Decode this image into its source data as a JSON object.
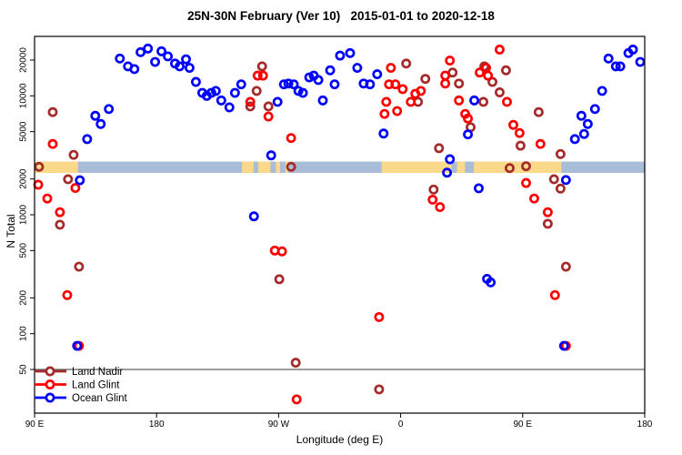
{
  "figure": {
    "title": "25N-30N February (Ver 10)   2015-01-01 to 2020-12-18",
    "xlabel": "Longitude (deg E)",
    "ylabel": "N Total"
  },
  "chart_data": {
    "type": "scatter",
    "title": "25N-30N February (Ver 10)   2015-01-01 to 2020-12-18",
    "xlabel": "Longitude (deg E)",
    "ylabel": "N Total",
    "x_axis": {
      "range_deg_east": [
        90,
        540
      ],
      "ticks": [
        90,
        180,
        270,
        360,
        450,
        540
      ],
      "tick_labels": [
        "90 E",
        "180",
        "90 W",
        "0",
        "90 E",
        "180"
      ]
    },
    "y_axis": {
      "scale": "log10",
      "range": [
        21,
        31000
      ],
      "ticks": [
        50,
        100,
        200,
        500,
        1000,
        2000,
        5000,
        10000,
        20000
      ],
      "tick_labels": [
        "50",
        "100",
        "200",
        "500",
        "1000",
        "2000",
        "5000",
        "10000",
        "20000"
      ]
    },
    "reference_line_y": 50,
    "map_band": {
      "description": "world map strip for 25N-30N drawn across plot",
      "value_range": [
        2250,
        2800
      ],
      "ocean_color": "#a9bcd8",
      "land_color": "#fbd98a",
      "land_segments_deg": [
        [
          90,
          122
        ],
        [
          243,
          251.5
        ],
        [
          255,
          264
        ],
        [
          268,
          271
        ],
        [
          275,
          277
        ],
        [
          346,
          397.5
        ],
        [
          401.5,
          407.5
        ],
        [
          414,
          478.5
        ]
      ]
    },
    "legend": {
      "position": "bottom-left",
      "entries": [
        {
          "label": "Land Nadir",
          "color": "#a52a2a"
        },
        {
          "label": "Land Glint",
          "color": "#ff0000"
        },
        {
          "label": "Ocean Glint",
          "color": "#0000ff"
        }
      ]
    },
    "series": [
      {
        "name": "Land Nadir",
        "color": "#a52a2a",
        "points": [
          [
            103.4,
            7300
          ],
          [
            118.8,
            3190
          ],
          [
            93.3,
            2530
          ],
          [
            114.7,
            1990
          ],
          [
            108.7,
            825
          ],
          [
            122.8,
            366
          ],
          [
            257.8,
            17700
          ],
          [
            253.8,
            11000
          ],
          [
            249.1,
            8150
          ],
          [
            262.5,
            8150
          ],
          [
            279.2,
            2530
          ],
          [
            270.5,
            287
          ],
          [
            282.6,
            57
          ],
          [
            364.1,
            18700
          ],
          [
            378.2,
            13900
          ],
          [
            398.3,
            15700
          ],
          [
            403,
            12700
          ],
          [
            372.8,
            8900
          ],
          [
            421.7,
            17700
          ],
          [
            427.7,
            13100
          ],
          [
            421,
            8900
          ],
          [
            411.6,
            5450
          ],
          [
            388.3,
            3630
          ],
          [
            384.3,
            1630
          ],
          [
            437.7,
            16400
          ],
          [
            433,
            10700
          ],
          [
            448.4,
            3810
          ],
          [
            461.8,
            7300
          ],
          [
            477.9,
            3240
          ],
          [
            440.4,
            2470
          ],
          [
            452.5,
            2560
          ],
          [
            473.1,
            1990
          ],
          [
            477.9,
            1660
          ],
          [
            468.5,
            840
          ],
          [
            481.9,
            366
          ],
          [
            344.1,
            34
          ]
        ]
      },
      {
        "name": "Land Glint",
        "color": "#ff0000",
        "points": [
          [
            103.4,
            3940
          ],
          [
            92.7,
            1790
          ],
          [
            120.1,
            1680
          ],
          [
            99.4,
            1370
          ],
          [
            108.7,
            1050
          ],
          [
            114.1,
            211
          ],
          [
            122.8,
            79
          ],
          [
            254.5,
            14800
          ],
          [
            258.5,
            14800
          ],
          [
            249.1,
            8900
          ],
          [
            262.5,
            6700
          ],
          [
            279.2,
            4420
          ],
          [
            352.8,
            17200
          ],
          [
            351.4,
            12500
          ],
          [
            356.1,
            12500
          ],
          [
            361.5,
            11400
          ],
          [
            370.8,
            10400
          ],
          [
            374.9,
            11000
          ],
          [
            367.5,
            8900
          ],
          [
            349.4,
            8900
          ],
          [
            357.4,
            7450
          ],
          [
            348.1,
            7050
          ],
          [
            396.3,
            19800
          ],
          [
            392.9,
            14800
          ],
          [
            392.9,
            12700
          ],
          [
            403,
            9150
          ],
          [
            418.3,
            15700
          ],
          [
            423,
            17200
          ],
          [
            424.4,
            14800
          ],
          [
            407.6,
            7050
          ],
          [
            409.6,
            6450
          ],
          [
            383.6,
            1340
          ],
          [
            389,
            1160
          ],
          [
            433,
            24500
          ],
          [
            438.4,
            8900
          ],
          [
            443.1,
            5700
          ],
          [
            447.7,
            4870
          ],
          [
            463.1,
            3940
          ],
          [
            452.5,
            1850
          ],
          [
            458.5,
            1370
          ],
          [
            468.5,
            1050
          ],
          [
            267.2,
            500
          ],
          [
            272.5,
            492
          ],
          [
            283.3,
            28
          ],
          [
            344.1,
            138
          ],
          [
            473.8,
            211
          ],
          [
            481.9,
            79
          ]
        ]
      },
      {
        "name": "Ocean Glint",
        "color": "#0000ff",
        "points": [
          [
            152.9,
            20600
          ],
          [
            158.9,
            17700
          ],
          [
            163.6,
            16800
          ],
          [
            168.2,
            23300
          ],
          [
            173.6,
            25000
          ],
          [
            178.9,
            19300
          ],
          [
            183.6,
            23700
          ],
          [
            188.3,
            21500
          ],
          [
            193.6,
            18700
          ],
          [
            197,
            17700
          ],
          [
            201.7,
            20300
          ],
          [
            204.3,
            17200
          ],
          [
            209,
            13100
          ],
          [
            213.7,
            10600
          ],
          [
            217,
            10000
          ],
          [
            220.4,
            10600
          ],
          [
            223.7,
            11000
          ],
          [
            227.7,
            9150
          ],
          [
            233.7,
            8000
          ],
          [
            237.8,
            10600
          ],
          [
            242.4,
            12500
          ],
          [
            269.2,
            8900
          ],
          [
            273.9,
            12500
          ],
          [
            277.2,
            12700
          ],
          [
            281.2,
            12500
          ],
          [
            284.6,
            11000
          ],
          [
            287.9,
            10600
          ],
          [
            292.6,
            14300
          ],
          [
            295.9,
            14800
          ],
          [
            299.3,
            13600
          ],
          [
            302.6,
            9150
          ],
          [
            308,
            16400
          ],
          [
            311.3,
            12500
          ],
          [
            315.3,
            21800
          ],
          [
            322.7,
            22900
          ],
          [
            328,
            17200
          ],
          [
            332.7,
            12700
          ],
          [
            337.4,
            12500
          ],
          [
            342.7,
            15200
          ],
          [
            347.4,
            4820
          ],
          [
            414.3,
            9150
          ],
          [
            409.6,
            4740
          ],
          [
            396.3,
            2930
          ],
          [
            394.2,
            2260
          ],
          [
            417.6,
            1670
          ],
          [
            128.8,
            4330
          ],
          [
            123.4,
            1950
          ],
          [
            144.8,
            7750
          ],
          [
            134.8,
            6800
          ],
          [
            138.8,
            5800
          ],
          [
            264.5,
            3160
          ],
          [
            251.8,
            970
          ],
          [
            488.5,
            4330
          ],
          [
            481.9,
            1960
          ],
          [
            513.3,
            20600
          ],
          [
            518.7,
            17700
          ],
          [
            522,
            17700
          ],
          [
            528,
            22900
          ],
          [
            531.3,
            24500
          ],
          [
            536.7,
            19300
          ],
          [
            508.6,
            11000
          ],
          [
            503.3,
            7750
          ],
          [
            493.3,
            6800
          ],
          [
            498,
            5800
          ],
          [
            495.3,
            4780
          ],
          [
            423.7,
            289
          ],
          [
            426.4,
            270
          ],
          [
            480.5,
            79
          ],
          [
            121.4,
            79
          ]
        ]
      }
    ]
  }
}
